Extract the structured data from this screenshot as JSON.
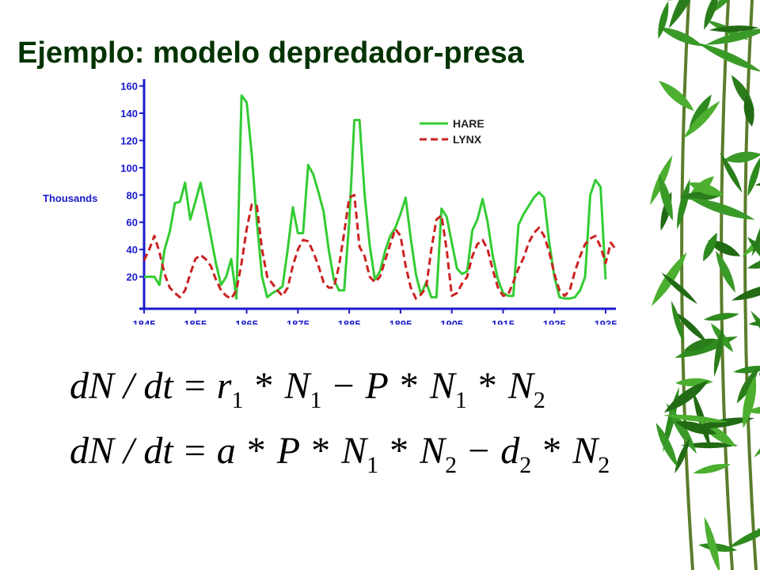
{
  "slide": {
    "title": "Ejemplo: modelo depredador-presa",
    "colors": {
      "title": "#003300",
      "hare": "#33cc33",
      "lynx": "#cc2222",
      "axis": "#1a1acc",
      "bamboo": "#2e8b1e"
    },
    "decoration": "bamboo-leaves"
  },
  "chart_data": {
    "type": "line",
    "ylabel": "Thousands",
    "xlabel": "",
    "title": "",
    "xlim": [
      1845,
      1937
    ],
    "ylim": [
      0,
      165
    ],
    "x_ticks": [
      1845,
      1855,
      1865,
      1875,
      1885,
      1895,
      1905,
      1915,
      1925,
      1935
    ],
    "y_ticks": [
      20,
      40,
      60,
      80,
      100,
      120,
      140,
      160
    ],
    "legend_position": "top-right",
    "grid": false,
    "series": [
      {
        "name": "HARE",
        "style": "solid",
        "x": [
          1845,
          1846,
          1847,
          1848,
          1849,
          1850,
          1851,
          1852,
          1853,
          1854,
          1855,
          1856,
          1857,
          1858,
          1859,
          1860,
          1861,
          1862,
          1863,
          1864,
          1865,
          1866,
          1867,
          1868,
          1869,
          1870,
          1871,
          1872,
          1873,
          1874,
          1875,
          1876,
          1877,
          1878,
          1879,
          1880,
          1881,
          1882,
          1883,
          1884,
          1885,
          1886,
          1887,
          1888,
          1889,
          1890,
          1891,
          1892,
          1893,
          1894,
          1895,
          1896,
          1897,
          1898,
          1899,
          1900,
          1901,
          1902,
          1903,
          1904,
          1905,
          1906,
          1907,
          1908,
          1909,
          1910,
          1911,
          1912,
          1913,
          1914,
          1915,
          1916,
          1917,
          1918,
          1919,
          1920,
          1921,
          1922,
          1923,
          1924,
          1925,
          1926,
          1927,
          1928,
          1929,
          1930,
          1931,
          1932,
          1933,
          1934,
          1935
        ],
        "y": [
          20,
          20,
          20,
          14,
          40,
          53,
          74,
          75,
          89,
          62,
          75,
          89,
          70,
          50,
          30,
          14,
          20,
          33,
          4,
          153,
          148,
          110,
          60,
          20,
          5,
          8,
          10,
          13,
          40,
          71,
          52,
          52,
          102,
          95,
          82,
          68,
          40,
          18,
          10,
          10,
          60,
          135,
          135,
          80,
          43,
          18,
          24,
          39,
          50,
          56,
          66,
          78,
          48,
          22,
          7,
          16,
          5,
          5,
          70,
          64,
          45,
          26,
          22,
          24,
          54,
          62,
          77,
          60,
          35,
          18,
          8,
          6,
          6,
          58,
          66,
          72,
          78,
          82,
          78,
          45,
          20,
          5,
          4,
          4,
          5,
          10,
          20,
          80,
          91,
          86,
          18
        ]
      },
      {
        "name": "LYNX",
        "style": "dashed",
        "x": [
          1845,
          1846,
          1847,
          1848,
          1849,
          1850,
          1851,
          1852,
          1853,
          1854,
          1855,
          1856,
          1857,
          1858,
          1859,
          1860,
          1861,
          1862,
          1863,
          1864,
          1865,
          1866,
          1867,
          1868,
          1869,
          1870,
          1871,
          1872,
          1873,
          1874,
          1875,
          1876,
          1877,
          1878,
          1879,
          1880,
          1881,
          1882,
          1883,
          1884,
          1885,
          1886,
          1887,
          1888,
          1889,
          1890,
          1891,
          1892,
          1893,
          1894,
          1895,
          1896,
          1897,
          1898,
          1899,
          1900,
          1901,
          1902,
          1903,
          1904,
          1905,
          1906,
          1907,
          1908,
          1909,
          1910,
          1911,
          1912,
          1913,
          1914,
          1915,
          1916,
          1917,
          1918,
          1919,
          1920,
          1921,
          1922,
          1923,
          1924,
          1925,
          1926,
          1927,
          1928,
          1929,
          1930,
          1931,
          1932,
          1933,
          1934,
          1935,
          1936,
          1937
        ],
        "y": [
          32,
          40,
          50,
          38,
          22,
          12,
          8,
          5,
          10,
          22,
          33,
          36,
          33,
          28,
          18,
          10,
          6,
          4,
          10,
          30,
          55,
          73,
          72,
          40,
          20,
          15,
          10,
          6,
          12,
          28,
          40,
          47,
          46,
          38,
          28,
          16,
          12,
          12,
          28,
          52,
          78,
          80,
          42,
          35,
          20,
          16,
          20,
          32,
          44,
          55,
          50,
          28,
          12,
          4,
          7,
          12,
          40,
          62,
          65,
          40,
          6,
          8,
          15,
          20,
          35,
          44,
          47,
          40,
          25,
          12,
          6,
          7,
          16,
          26,
          34,
          45,
          52,
          56,
          50,
          38,
          22,
          10,
          6,
          10,
          24,
          35,
          44,
          48,
          50,
          42,
          30,
          45,
          40
        ]
      }
    ]
  },
  "equations": [
    {
      "lhs": "dN / dt",
      "terms": [
        {
          "var": "r",
          "sub": "1"
        },
        {
          "op": "*"
        },
        {
          "var": "N",
          "sub": "1"
        },
        {
          "op": "−"
        },
        {
          "var": "P"
        },
        {
          "op": "*"
        },
        {
          "var": "N",
          "sub": "1"
        },
        {
          "op": "*"
        },
        {
          "var": "N",
          "sub": "2"
        }
      ]
    },
    {
      "lhs": "dN / dt",
      "terms": [
        {
          "var": "a"
        },
        {
          "op": "*"
        },
        {
          "var": "P"
        },
        {
          "op": "*"
        },
        {
          "var": "N",
          "sub": "1"
        },
        {
          "op": "*"
        },
        {
          "var": "N",
          "sub": "2"
        },
        {
          "op": "−"
        },
        {
          "var": "d",
          "sub": "2"
        },
        {
          "op": "*"
        },
        {
          "var": "N",
          "sub": "2"
        }
      ]
    }
  ]
}
